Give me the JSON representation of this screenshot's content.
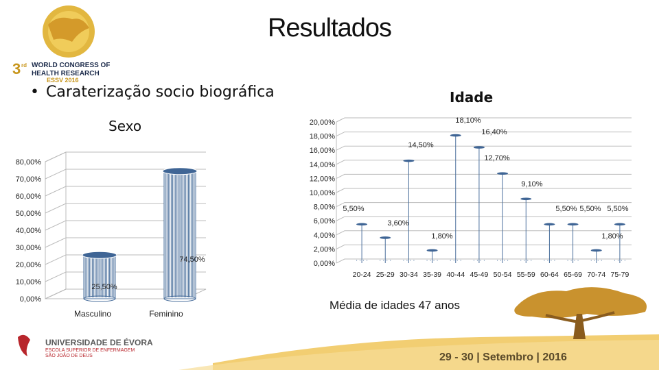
{
  "slide": {
    "title": "Resultados",
    "bullet": "Caraterização socio biográfica",
    "footer_text": "29 - 30 | Setembro | 2016",
    "media_text": "Média de idades 47 anos"
  },
  "logos": {
    "congress": {
      "line1": "3",
      "line2": "rd",
      "line3": "WORLD CONGRESS OF",
      "line4": "HEALTH RESEARCH",
      "line5": "ESSV 2016"
    },
    "university": {
      "line1": "UNIVERSIDADE DE ÉVORA",
      "line2": "ESCOLA SUPERIOR DE ENFERMAGEM",
      "line3": "SÃO JOÃO DE DEUS"
    }
  },
  "chart_data": [
    {
      "type": "bar",
      "title": "Sexo",
      "categories": [
        "Masculino",
        "Feminino"
      ],
      "values": [
        25.5,
        74.5
      ],
      "data_labels": [
        "25,50%",
        "74,50%"
      ],
      "ylim": [
        0,
        80
      ],
      "yticks": [
        "0,00%",
        "10,00%",
        "20,00%",
        "30,00%",
        "40,00%",
        "50,00%",
        "60,00%",
        "70,00%",
        "80,00%"
      ],
      "grid": true,
      "color": "#4a6f9c"
    },
    {
      "type": "bar",
      "title": "Idade",
      "categories": [
        "20-24",
        "25-29",
        "30-34",
        "35-39",
        "40-44",
        "45-49",
        "50-54",
        "55-59",
        "60-64",
        "65-69",
        "70-74",
        "75-79"
      ],
      "values": [
        5.5,
        3.6,
        14.5,
        1.8,
        18.1,
        16.4,
        12.7,
        9.1,
        5.5,
        5.5,
        1.8,
        5.5
      ],
      "data_labels": [
        "5,50%",
        "3,60%",
        "14,50%",
        "1,80%",
        "18,10%",
        "16,40%",
        "12,70%",
        "9,10%",
        "5,50%",
        "5,50%",
        "1,80%",
        "5,50%"
      ],
      "ylim": [
        0,
        20
      ],
      "yticks": [
        "0,00%",
        "2,00%",
        "4,00%",
        "6,00%",
        "8,00%",
        "10,00%",
        "12,00%",
        "14,00%",
        "16,00%",
        "18,00%",
        "20,00%"
      ],
      "grid": true,
      "color": "#4a6f9c"
    }
  ]
}
